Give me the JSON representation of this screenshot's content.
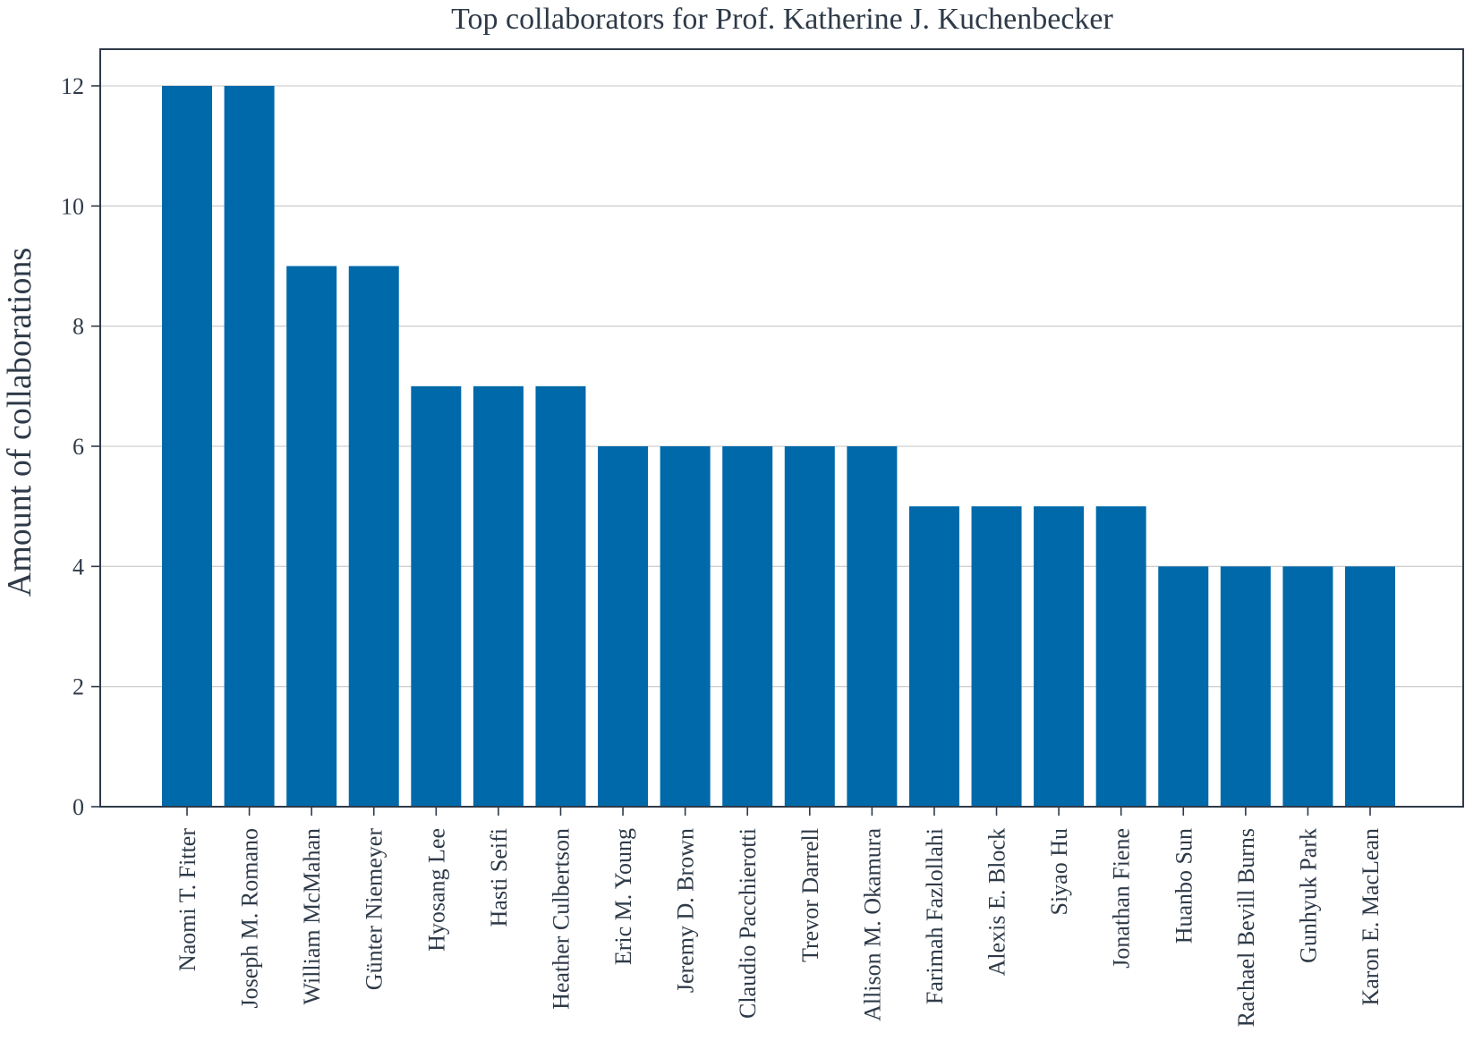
{
  "chart_data": {
    "type": "bar",
    "title": "Top collaborators for Prof. Katherine J. Kuchenbecker",
    "xlabel": "",
    "ylabel": "Amount of collaborations",
    "ylim": [
      0,
      12.6
    ],
    "yticks": [
      0,
      2,
      4,
      6,
      8,
      10,
      12
    ],
    "grid": "horizontal",
    "bar_color": "#0069aa",
    "categories": [
      "Naomi T. Fitter",
      "Joseph M. Romano",
      "William McMahan",
      "Günter Niemeyer",
      "Hyosang Lee",
      "Hasti Seifi",
      "Heather Culbertson",
      "Eric M. Young",
      "Jeremy D. Brown",
      "Claudio Pacchierotti",
      "Trevor Darrell",
      "Allison M. Okamura",
      "Farimah Fazlollahi",
      "Alexis E. Block",
      "Siyao Hu",
      "Jonathan Fiene",
      "Huanbo Sun",
      "Rachael Bevill Burns",
      "Gunhyuk Park",
      "Karon E. MacLean"
    ],
    "values": [
      12,
      12,
      9,
      9,
      7,
      7,
      7,
      6,
      6,
      6,
      6,
      6,
      5,
      5,
      5,
      5,
      4,
      4,
      4,
      4
    ]
  }
}
